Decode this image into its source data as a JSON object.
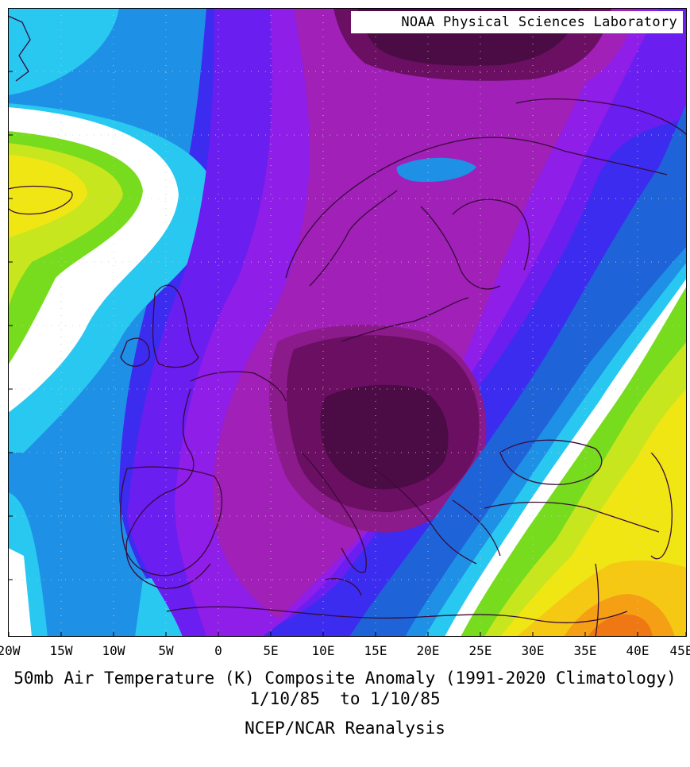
{
  "credit": "NOAA Physical Sciences Laboratory",
  "x_axis_ticks": [
    "20W",
    "15W",
    "10W",
    "5W",
    "0",
    "5E",
    "10E",
    "15E",
    "20E",
    "25E",
    "30E",
    "35E",
    "40E",
    "45E"
  ],
  "caption": {
    "title": "50mb Air Temperature (K) Composite Anomaly (1991-2020 Climatology)",
    "dates": "1/10/85  to 1/10/85",
    "source": "NCEP/NCAR Reanalysis"
  },
  "colors": {
    "darkest_purple": "#4b0b45",
    "dark_purple": "#6b0f63",
    "magenta_dark": "#8b1a8a",
    "magenta": "#a020b8",
    "violet": "#8f1ee8",
    "purple_blue": "#6a1ef0",
    "blue": "#3c2cf0",
    "medium_blue": "#1e64d8",
    "steel_blue": "#1e90e6",
    "light_blue": "#28c8f0",
    "white": "#ffffff",
    "green": "#78dc1e",
    "yellow_green": "#c8e61e",
    "yellow": "#f0e614",
    "gold": "#f5c814",
    "orange": "#f5a014",
    "dark_orange": "#f07814",
    "coastline": "#3a0a3a",
    "grid": "#cccccc"
  }
}
